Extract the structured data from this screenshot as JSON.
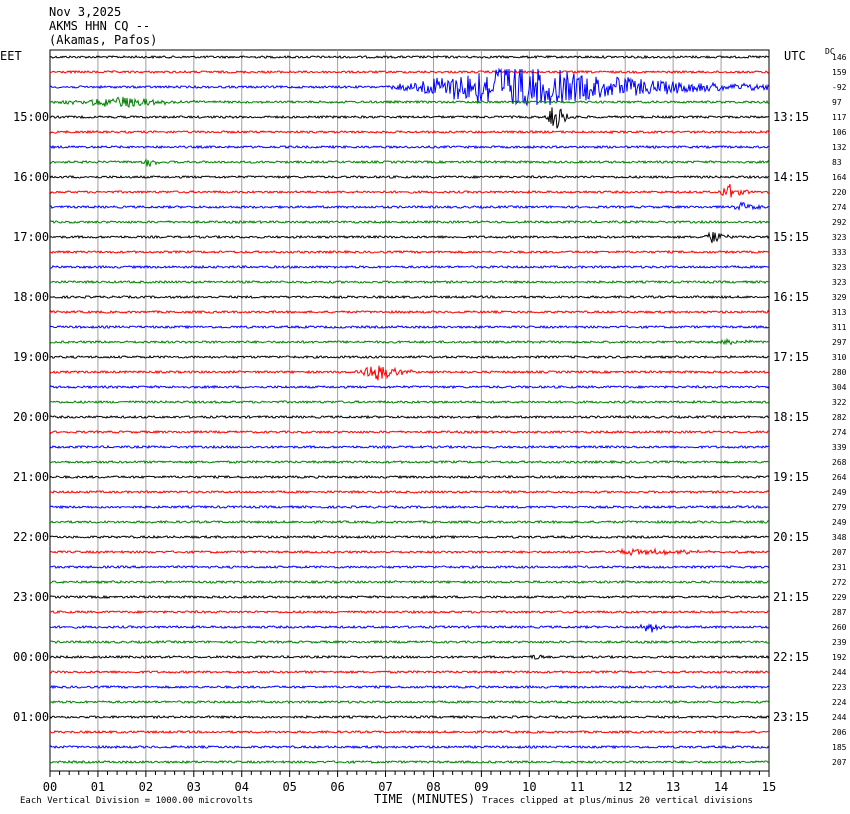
{
  "header": {
    "date": "Nov 3,2025",
    "station": "AKMS HHN CQ --",
    "location": "(Akamas, Pafos)"
  },
  "axis": {
    "left_tz": "EET",
    "right_tz": "UTC",
    "dc_label": "DC",
    "xlabel": "TIME (MINUTES)"
  },
  "footer": {
    "scale": "Each Vertical Division = 1000.00 microvolts",
    "clip": "Traces clipped at plus/minus 20 vertical divisions"
  },
  "colors": {
    "trace_cycle": [
      "#000000",
      "#ff0000",
      "#0000ff",
      "#008000"
    ],
    "grid": "#a0a0a0"
  },
  "chart_data": {
    "type": "line",
    "title": "AKMS HHN CQ --",
    "xlabel": "TIME (MINUTES)",
    "ylabel": "",
    "xlim": [
      0,
      15
    ],
    "x_ticks": [
      "00",
      "01",
      "02",
      "03",
      "04",
      "05",
      "06",
      "07",
      "08",
      "09",
      "10",
      "11",
      "12",
      "13",
      "14",
      "15"
    ],
    "left_time_labels": [
      {
        "row": 4,
        "label": "15:00"
      },
      {
        "row": 8,
        "label": "16:00"
      },
      {
        "row": 12,
        "label": "17:00"
      },
      {
        "row": 16,
        "label": "18:00"
      },
      {
        "row": 20,
        "label": "19:00"
      },
      {
        "row": 24,
        "label": "20:00"
      },
      {
        "row": 28,
        "label": "21:00"
      },
      {
        "row": 32,
        "label": "22:00"
      },
      {
        "row": 36,
        "label": "23:00"
      },
      {
        "row": 40,
        "label": "00:00"
      },
      {
        "row": 44,
        "label": "01:00"
      }
    ],
    "right_time_labels": [
      {
        "row": 4,
        "label": "13:15"
      },
      {
        "row": 8,
        "label": "14:15"
      },
      {
        "row": 12,
        "label": "15:15"
      },
      {
        "row": 16,
        "label": "16:15"
      },
      {
        "row": 20,
        "label": "17:15"
      },
      {
        "row": 24,
        "label": "18:15"
      },
      {
        "row": 28,
        "label": "19:15"
      },
      {
        "row": 32,
        "label": "20:15"
      },
      {
        "row": 36,
        "label": "21:15"
      },
      {
        "row": 40,
        "label": "22:15"
      },
      {
        "row": 44,
        "label": "23:15"
      }
    ],
    "dc_values": [
      146,
      159,
      -92,
      97,
      117,
      106,
      132,
      83,
      164,
      220,
      274,
      292,
      323,
      333,
      323,
      323,
      329,
      313,
      311,
      297,
      310,
      280,
      304,
      322,
      282,
      274,
      339,
      268,
      264,
      249,
      279,
      249,
      348,
      207,
      231,
      272,
      229,
      287,
      260,
      239,
      192,
      244,
      223,
      224,
      244,
      206,
      185,
      207
    ],
    "events": [
      {
        "row": 2,
        "start_min": 7.0,
        "peak_min": 9.7,
        "end_min": 15.0,
        "amp": 1.0
      },
      {
        "row": 3,
        "start_min": 0.0,
        "peak_min": 1.5,
        "end_min": 3.2,
        "amp": 0.22
      },
      {
        "row": 4,
        "start_min": 10.3,
        "peak_min": 10.55,
        "end_min": 11.0,
        "amp": 0.55
      },
      {
        "row": 7,
        "start_min": 1.9,
        "peak_min": 2.05,
        "end_min": 2.4,
        "amp": 0.2
      },
      {
        "row": 9,
        "start_min": 13.9,
        "peak_min": 14.15,
        "end_min": 14.6,
        "amp": 0.38
      },
      {
        "row": 10,
        "start_min": 14.2,
        "peak_min": 14.45,
        "end_min": 14.9,
        "amp": 0.22
      },
      {
        "row": 12,
        "start_min": 13.6,
        "peak_min": 13.85,
        "end_min": 14.3,
        "amp": 0.3
      },
      {
        "row": 19,
        "start_min": 13.8,
        "peak_min": 14.3,
        "end_min": 15.0,
        "amp": 0.12
      },
      {
        "row": 21,
        "start_min": 6.3,
        "peak_min": 6.85,
        "end_min": 7.6,
        "amp": 0.4
      },
      {
        "row": 33,
        "start_min": 11.5,
        "peak_min": 12.2,
        "end_min": 15.0,
        "amp": 0.12
      },
      {
        "row": 38,
        "start_min": 12.2,
        "peak_min": 12.55,
        "end_min": 13.0,
        "amp": 0.25
      },
      {
        "row": 40,
        "start_min": 10.0,
        "peak_min": 10.1,
        "end_min": 10.4,
        "amp": 0.15
      }
    ]
  }
}
